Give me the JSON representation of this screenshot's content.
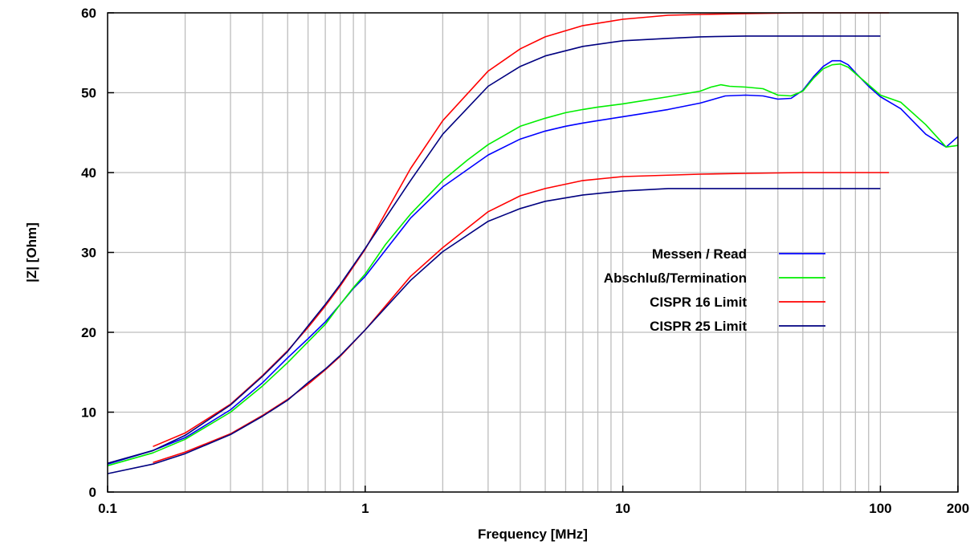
{
  "chart_data": {
    "type": "line",
    "title": "",
    "xlabel": "Frequency [MHz]",
    "ylabel": "|Z| [Ohm]",
    "xscale": "log",
    "xlim": [
      0.1,
      200
    ],
    "ylim": [
      0,
      60
    ],
    "grid": true,
    "legend_position": "center-right",
    "x_ticks": [
      {
        "value": 0.1,
        "label": "0.1"
      },
      {
        "value": 1,
        "label": "1"
      },
      {
        "value": 10,
        "label": "10"
      },
      {
        "value": 100,
        "label": "100"
      },
      {
        "value": 200,
        "label": "200"
      }
    ],
    "y_ticks": [
      {
        "value": 0,
        "label": "0"
      },
      {
        "value": 10,
        "label": "10"
      },
      {
        "value": 20,
        "label": "20"
      },
      {
        "value": 30,
        "label": "30"
      },
      {
        "value": 40,
        "label": "40"
      },
      {
        "value": 50,
        "label": "50"
      },
      {
        "value": 60,
        "label": "60"
      }
    ],
    "series": [
      {
        "name": "Messen / Read",
        "color": "#0000ff",
        "x": [
          0.1,
          0.15,
          0.2,
          0.3,
          0.4,
          0.5,
          0.6,
          0.7,
          0.8,
          0.9,
          1,
          1.2,
          1.5,
          2,
          2.5,
          3,
          4,
          5,
          6,
          7,
          8,
          10,
          12,
          15,
          20,
          25,
          30,
          35,
          40,
          45,
          50,
          55,
          60,
          65,
          70,
          75,
          80,
          90,
          100,
          120,
          150,
          180,
          200
        ],
        "y": [
          3.5,
          5.2,
          6.8,
          10.3,
          13.7,
          16.8,
          19.2,
          21.3,
          23.5,
          25.5,
          27.0,
          30.3,
          34.3,
          38.2,
          40.4,
          42.2,
          44.2,
          45.2,
          45.8,
          46.2,
          46.5,
          47.0,
          47.4,
          47.9,
          48.7,
          49.6,
          49.7,
          49.6,
          49.2,
          49.3,
          50.3,
          52.0,
          53.3,
          54.0,
          54.0,
          53.5,
          52.5,
          50.8,
          49.5,
          48.0,
          44.8,
          43.2,
          44.5
        ]
      },
      {
        "name": "Abschluß/Termination",
        "color": "#00ee00",
        "x": [
          0.1,
          0.15,
          0.2,
          0.3,
          0.4,
          0.5,
          0.6,
          0.7,
          0.8,
          0.9,
          1,
          1.2,
          1.5,
          2,
          2.5,
          3,
          4,
          5,
          6,
          7,
          8,
          10,
          12,
          15,
          20,
          22,
          24,
          26,
          30,
          35,
          40,
          45,
          50,
          55,
          60,
          65,
          70,
          75,
          80,
          90,
          100,
          120,
          150,
          180,
          200
        ],
        "y": [
          3.3,
          4.9,
          6.6,
          10.0,
          13.3,
          16.2,
          18.8,
          21.0,
          23.5,
          25.6,
          27.3,
          31.0,
          34.8,
          39.0,
          41.6,
          43.5,
          45.8,
          46.8,
          47.5,
          47.9,
          48.2,
          48.6,
          49.0,
          49.5,
          50.2,
          50.7,
          51.0,
          50.8,
          50.7,
          50.5,
          49.7,
          49.6,
          50.2,
          51.8,
          53.0,
          53.5,
          53.6,
          53.2,
          52.4,
          51.0,
          49.7,
          48.8,
          46.0,
          43.2,
          43.4
        ]
      },
      {
        "name": "CISPR 16 Limit",
        "color": "#ff0000",
        "x": [
          0.15,
          0.2,
          0.3,
          0.4,
          0.5,
          0.6,
          0.7,
          0.8,
          1,
          1.5,
          2,
          3,
          4,
          5,
          7,
          10,
          15,
          20,
          30,
          50,
          108
        ],
        "y": [
          5.7,
          7.4,
          11.0,
          14.6,
          17.7,
          20.6,
          23.3,
          25.8,
          30.4,
          40.5,
          46.5,
          52.7,
          55.5,
          57.0,
          58.4,
          59.2,
          59.7,
          59.8,
          59.9,
          60.0,
          60.0
        ],
        "lower": {
          "x": [
            0.15,
            0.2,
            0.3,
            0.4,
            0.5,
            0.6,
            0.7,
            0.8,
            1,
            1.5,
            2,
            3,
            4,
            5,
            7,
            10,
            20,
            30,
            50,
            108
          ],
          "y": [
            3.7,
            5.0,
            7.3,
            9.6,
            11.6,
            13.5,
            15.3,
            17.0,
            20.3,
            27.0,
            30.6,
            35.1,
            37.1,
            38.0,
            39.0,
            39.5,
            39.8,
            39.9,
            40.0,
            40.0
          ]
        }
      },
      {
        "name": "CISPR 25 Limit",
        "color": "#000080",
        "x": [
          0.1,
          0.15,
          0.2,
          0.3,
          0.4,
          0.5,
          0.6,
          0.7,
          0.8,
          1,
          1.5,
          2,
          3,
          4,
          5,
          7,
          10,
          15,
          20,
          30,
          50,
          100
        ],
        "y": [
          3.6,
          5.2,
          7.1,
          10.9,
          14.5,
          17.6,
          20.8,
          23.5,
          26.0,
          30.5,
          39.0,
          44.8,
          50.8,
          53.3,
          54.6,
          55.8,
          56.5,
          56.8,
          57.0,
          57.1,
          57.1,
          57.1
        ],
        "lower": {
          "x": [
            0.1,
            0.15,
            0.2,
            0.3,
            0.4,
            0.5,
            0.6,
            0.7,
            0.8,
            1,
            1.5,
            2,
            3,
            4,
            5,
            7,
            10,
            15,
            20,
            50,
            100
          ],
          "y": [
            2.3,
            3.5,
            4.8,
            7.2,
            9.5,
            11.5,
            13.7,
            15.4,
            17.1,
            20.3,
            26.5,
            30.1,
            33.9,
            35.5,
            36.4,
            37.2,
            37.7,
            38.0,
            38.0,
            38.0,
            38.0
          ]
        }
      }
    ]
  }
}
